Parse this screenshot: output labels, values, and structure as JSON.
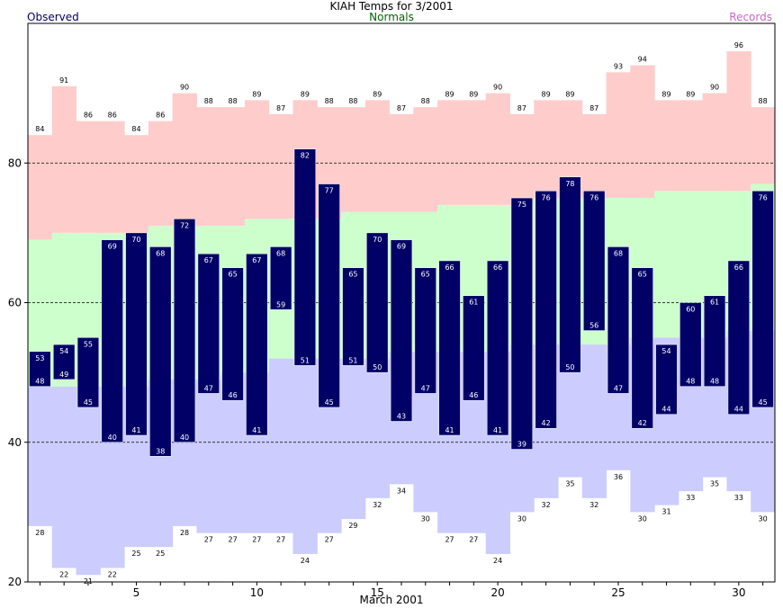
{
  "chart_data": {
    "type": "bar",
    "title": "KIAH Temps for 3/2001",
    "xlabel": "March 2001",
    "ylabel": "",
    "legend": {
      "left": "Observed",
      "center": "Normals",
      "right": "Records"
    },
    "x": [
      1,
      2,
      3,
      4,
      5,
      6,
      7,
      8,
      9,
      10,
      11,
      12,
      13,
      14,
      15,
      16,
      17,
      18,
      19,
      20,
      21,
      22,
      23,
      24,
      25,
      26,
      27,
      28,
      29,
      30,
      31
    ],
    "ylim": [
      20,
      100
    ],
    "yticks": [
      20,
      40,
      60,
      80
    ],
    "xticks": [
      5,
      10,
      15,
      20,
      25,
      30
    ],
    "gridlines": [
      40,
      60,
      80
    ],
    "series": [
      {
        "name": "Observed",
        "key": "obs_high",
        "values": [
          53,
          54,
          55,
          69,
          70,
          68,
          72,
          67,
          65,
          67,
          68,
          82,
          77,
          65,
          70,
          69,
          65,
          66,
          61,
          66,
          75,
          76,
          78,
          76,
          68,
          65,
          54,
          60,
          61,
          66,
          76
        ]
      },
      {
        "key": "obs_low",
        "values": [
          48,
          49,
          45,
          40,
          41,
          38,
          40,
          47,
          46,
          41,
          59,
          51,
          45,
          51,
          50,
          43,
          47,
          41,
          46,
          41,
          39,
          42,
          50,
          56,
          47,
          42,
          44,
          48,
          48,
          44,
          45
        ]
      },
      {
        "name": "Normals",
        "key": "normal_high",
        "values": [
          69,
          70,
          70,
          70,
          70,
          71,
          71,
          71,
          71,
          72,
          72,
          72,
          72,
          73,
          73,
          73,
          73,
          74,
          74,
          74,
          74,
          75,
          75,
          75,
          75,
          75,
          76,
          76,
          76,
          76,
          77
        ]
      },
      {
        "key": "normal_low",
        "values": [
          48,
          48,
          48,
          48,
          48,
          49,
          49,
          49,
          50,
          50,
          52,
          52,
          52,
          52,
          52,
          53,
          53,
          53,
          53,
          53,
          54,
          54,
          54,
          54,
          54,
          55,
          55,
          55,
          55,
          56,
          56
        ]
      },
      {
        "name": "Records",
        "key": "record_high",
        "values": [
          84,
          91,
          86,
          86,
          84,
          86,
          90,
          88,
          88,
          89,
          87,
          89,
          88,
          88,
          89,
          87,
          88,
          89,
          89,
          90,
          87,
          89,
          89,
          87,
          93,
          94,
          89,
          89,
          90,
          96,
          88
        ]
      },
      {
        "key": "record_low",
        "values": [
          28,
          22,
          21,
          22,
          25,
          25,
          28,
          27,
          27,
          27,
          27,
          24,
          27,
          29,
          32,
          34,
          30,
          27,
          27,
          24,
          30,
          32,
          35,
          32,
          36,
          30,
          31,
          33,
          35,
          33,
          30
        ]
      }
    ],
    "colors": {
      "observed": "#000066",
      "normals": "#ccffcc",
      "records_high": "#ffcccc",
      "records_low": "#ccccff",
      "normals_text": "#006600",
      "records_text": "#cc66cc"
    },
    "grid": true
  }
}
